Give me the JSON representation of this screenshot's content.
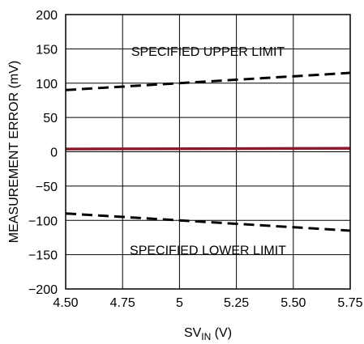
{
  "chart_data": {
    "type": "line",
    "title": "",
    "xlabel": {
      "main": "SV",
      "subscript": "IN",
      "unit": " (V)"
    },
    "ylabel": "MEASUREMENT ERROR (mV)",
    "xlim": [
      4.5,
      5.75
    ],
    "ylim": [
      -200,
      200
    ],
    "x_ticks": [
      4.5,
      4.75,
      5,
      5.25,
      5.5,
      5.75
    ],
    "x_tick_labels": [
      "4.50",
      "4.75",
      "5",
      "5.25",
      "5.50",
      "5.75"
    ],
    "y_ticks": [
      -200,
      -150,
      -100,
      -50,
      0,
      50,
      100,
      150,
      200
    ],
    "y_tick_labels": [
      "−200",
      "−150",
      "−100",
      "−50",
      "0",
      "50",
      "100",
      "150",
      "200"
    ],
    "grid": true,
    "series": [
      {
        "key": "upper",
        "color": "#000000",
        "style": "dashed",
        "x": [
          4.5,
          5.75
        ],
        "y": [
          90,
          115
        ]
      },
      {
        "key": "measured",
        "color": "#8b1a2e",
        "style": "solid",
        "x": [
          4.5,
          5.75
        ],
        "y": [
          4,
          5
        ]
      },
      {
        "key": "lower",
        "color": "#000000",
        "style": "dashed",
        "x": [
          4.5,
          5.75
        ],
        "y": [
          -90,
          -115
        ]
      }
    ],
    "annotations": [
      {
        "text": "SPECIFIED UPPER LIMIT",
        "x": 5.125,
        "y": 140
      },
      {
        "text": "SPECIFIED LOWER LIMIT",
        "x": 5.125,
        "y": -150
      }
    ]
  }
}
